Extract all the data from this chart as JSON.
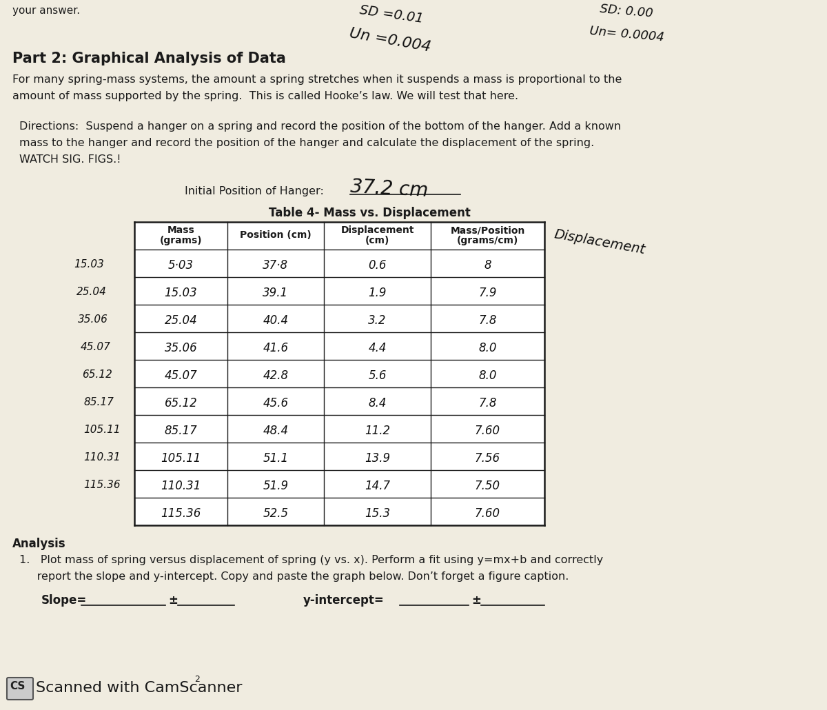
{
  "bg_color": "#f0ece0",
  "paper_color": "#f5f1e8",
  "part2_title": "Part 2: Graphical Analysis of Data",
  "intro_line1": "For many spring-mass systems, the amount a spring stretches when it suspends a mass is proportional to the",
  "intro_line2": "amount of mass supported by the spring.  This is called Hooke’s law. We will test that here.",
  "dir_line1": "Directions:  Suspend a hanger on a spring and record the position of the bottom of the hanger. Add a known",
  "dir_line2": "mass to the hanger and record the position of the hanger and calculate the displacement of the spring.",
  "dir_line3": "WATCH SIG. FIGS.!",
  "initial_position_label": "Initial Position of Hanger:",
  "initial_position_value": "37.2 cm",
  "table_title": "Table 4- Mass vs. Displacement",
  "col_headers": [
    "Mass\n(grams)",
    "Position (cm)",
    "Displacement\n(cm)",
    "Mass/Position\n(grams/cm)"
  ],
  "handwritten_col5": "Displacement",
  "mass_col": [
    "5·03",
    "15.03",
    "25.04",
    "35.06",
    "45.07",
    "65.12",
    "85.17",
    "105.11",
    "110.31",
    "115.36"
  ],
  "position_col": [
    "37·8",
    "39.1",
    "40.4",
    "41.6",
    "42.8",
    "45.6",
    "48.4",
    "51.1",
    "51.9",
    "52.5"
  ],
  "displacement_col": [
    "0.6",
    "1.9",
    "3.2",
    "4.4",
    "5.6",
    "8.4",
    "11.2",
    "13.9",
    "14.7",
    "15.3"
  ],
  "mass_position_col": [
    "8",
    "7.9",
    "7.8",
    "8.0",
    "8.0",
    "7.8",
    "7.60",
    "7.56",
    "7.50",
    "7.60"
  ],
  "left_handwritten": [
    "15.03",
    "25.04",
    "35.06",
    "45.07",
    "65.12",
    "85.17",
    "105.11",
    "110.31",
    "115.36"
  ],
  "analysis_title": "Analysis",
  "analysis_line1": "1.   Plot mass of spring versus displacement of spring (y vs. x). Perform a fit using y=mx+b and correctly",
  "analysis_line2": "     report the slope and y-intercept. Copy and paste the graph below. Don’t forget a figure caption.",
  "slope_label": "Slope=",
  "yint_label": "y-intercept=",
  "footer_text": "Scanned with CamScanner",
  "hw_top1": "SD =0.01",
  "hw_top2": "Un =0.004",
  "hw_top2b": "Un =0.004",
  "hw_tr1": "SD: 0.00",
  "hw_tr2": "Un= 0.0004"
}
